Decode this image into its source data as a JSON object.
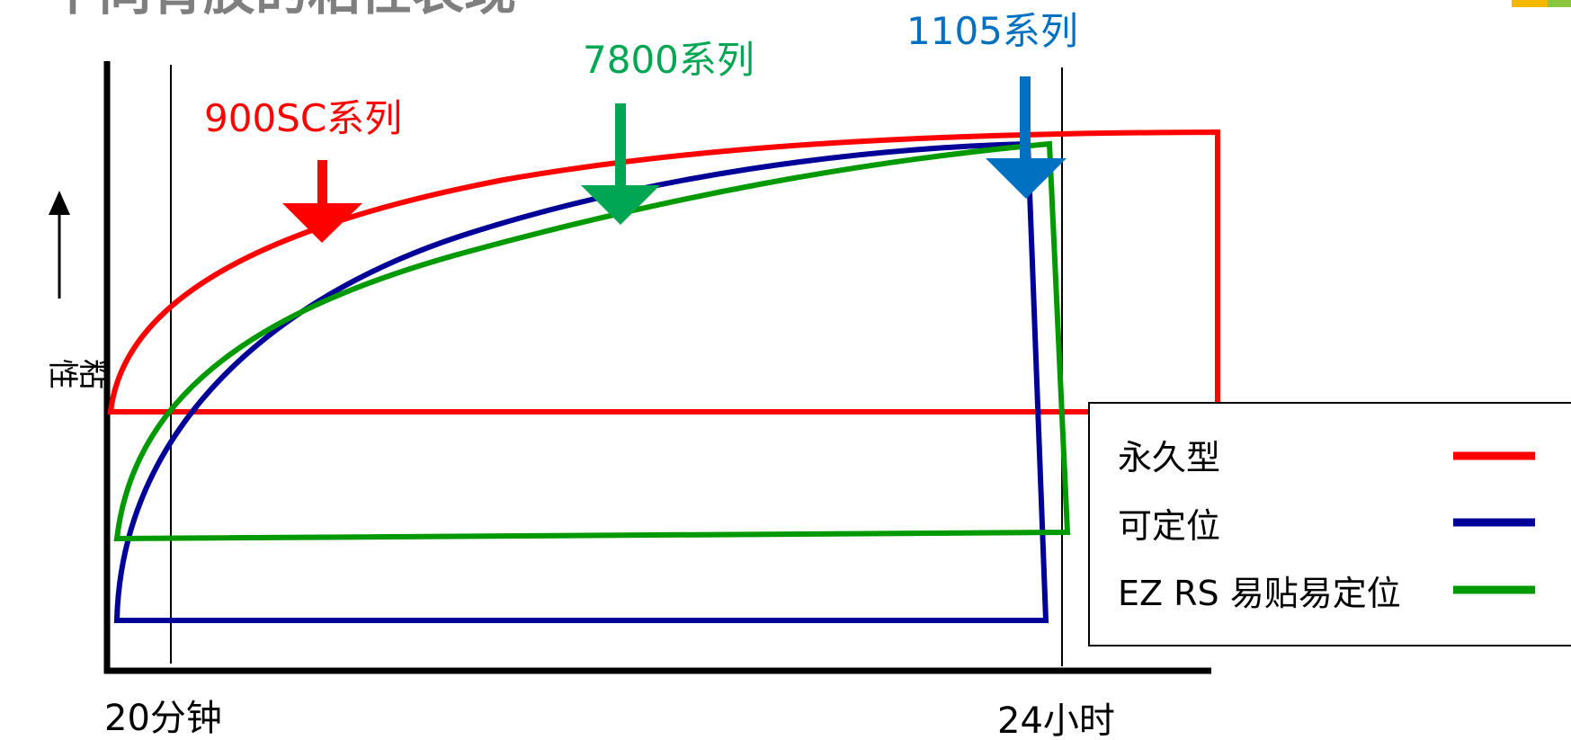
{
  "page": {
    "title": "不同背胶的粘性表现"
  },
  "axes": {
    "y_label_char1": "粘",
    "y_label_char2": "性",
    "x_tick_start": "20分钟",
    "x_tick_end": "24小时"
  },
  "callouts": {
    "red": "900SC系列",
    "green": "7800系列",
    "blue": "1105系列"
  },
  "legend": {
    "items": [
      {
        "label": "永久型",
        "color": "#ff0000"
      },
      {
        "label": "可定位",
        "color": "#000099"
      },
      {
        "label": "EZ RS 易贴易定位",
        "color": "#009900"
      }
    ]
  },
  "colors": {
    "red": "#ff0000",
    "navy": "#000099",
    "green": "#009900",
    "arrow_red": "#ff0000",
    "arrow_green": "#00a651",
    "arrow_blue": "#0070c0",
    "callout_red": "#ff0000",
    "callout_green": "#00a651",
    "callout_blue": "#0070c0"
  }
}
